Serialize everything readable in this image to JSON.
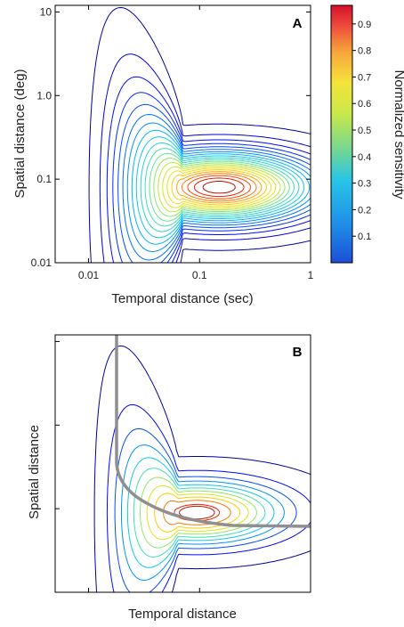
{
  "chart_data": [
    {
      "type": "contour",
      "panel_label": "A",
      "xlabel": "Temporal distance (sec)",
      "ylabel": "Spatial distance (deg)",
      "x_scale": "log",
      "y_scale": "log",
      "xlim": [
        0.005,
        1
      ],
      "ylim": [
        0.01,
        12
      ],
      "x_ticks": [
        "0.01",
        "0.1",
        "1"
      ],
      "y_ticks": [
        "0.01",
        "0.1",
        "1.0",
        "10"
      ],
      "peak": {
        "x": 0.15,
        "y": 0.08
      },
      "levels": [
        0.1,
        0.2,
        0.3,
        0.4,
        0.5,
        0.6,
        0.7,
        0.8,
        0.9
      ],
      "colorbar": {
        "label": "Normalized sensitivity",
        "ticks": [
          "0.1",
          "0.2",
          "0.3",
          "0.4",
          "0.5",
          "0.6",
          "0.7",
          "0.8",
          "0.9"
        ],
        "range": [
          0,
          0.97
        ],
        "colormap": "jet"
      }
    },
    {
      "type": "contour",
      "panel_label": "B",
      "xlabel": "Temporal distance",
      "ylabel": "Spatial distance",
      "x_scale": "log",
      "y_scale": "log",
      "levels": [
        0.1,
        0.2,
        0.3,
        0.4,
        0.5,
        0.6,
        0.7,
        0.8,
        0.9
      ],
      "overlay_curve": {
        "color": "#8f8f8f",
        "description": "ridge"
      }
    }
  ],
  "colors": {
    "contour_low": "#1a1aa8",
    "contour_high": "#b00000",
    "overlay": "#8f8f8f"
  }
}
